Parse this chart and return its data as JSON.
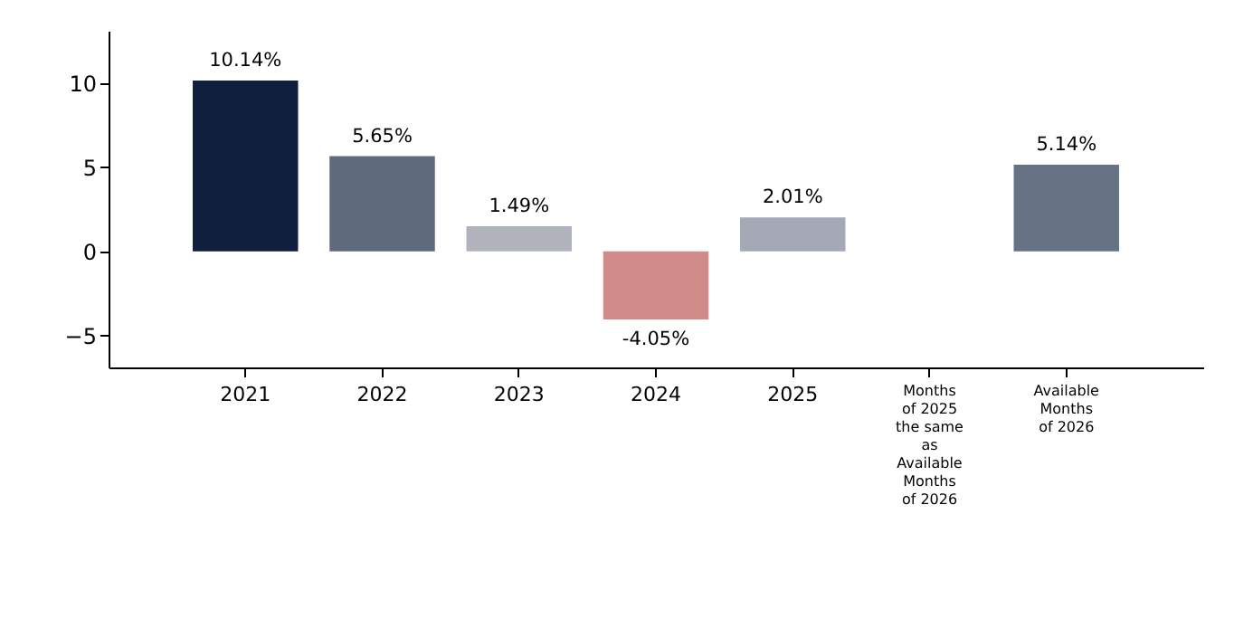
{
  "chart_data": {
    "type": "bar",
    "categories": [
      "2021",
      "2022",
      "2023",
      "2024",
      "2025",
      "Months\nof 2025\nthe same\nas\nAvailable\nMonths\nof 2026",
      "Available\nMonths\nof 2026"
    ],
    "values": [
      10.14,
      5.65,
      1.49,
      -4.05,
      2.01,
      null,
      5.14
    ],
    "colors": [
      "#111f3e",
      "#5f6a7c",
      "#b0b3bc",
      "#d08a89",
      "#a5a9b5",
      null,
      "#687285"
    ],
    "value_labels": [
      "10.14%",
      "5.65%",
      "1.49%",
      "-4.05%",
      "2.01%",
      null,
      "5.14%"
    ],
    "ylim": [
      -6.9,
      13.1
    ],
    "yticks": [
      {
        "value": -5,
        "label": "−5"
      },
      0,
      5,
      10
    ],
    "grid": false
  }
}
